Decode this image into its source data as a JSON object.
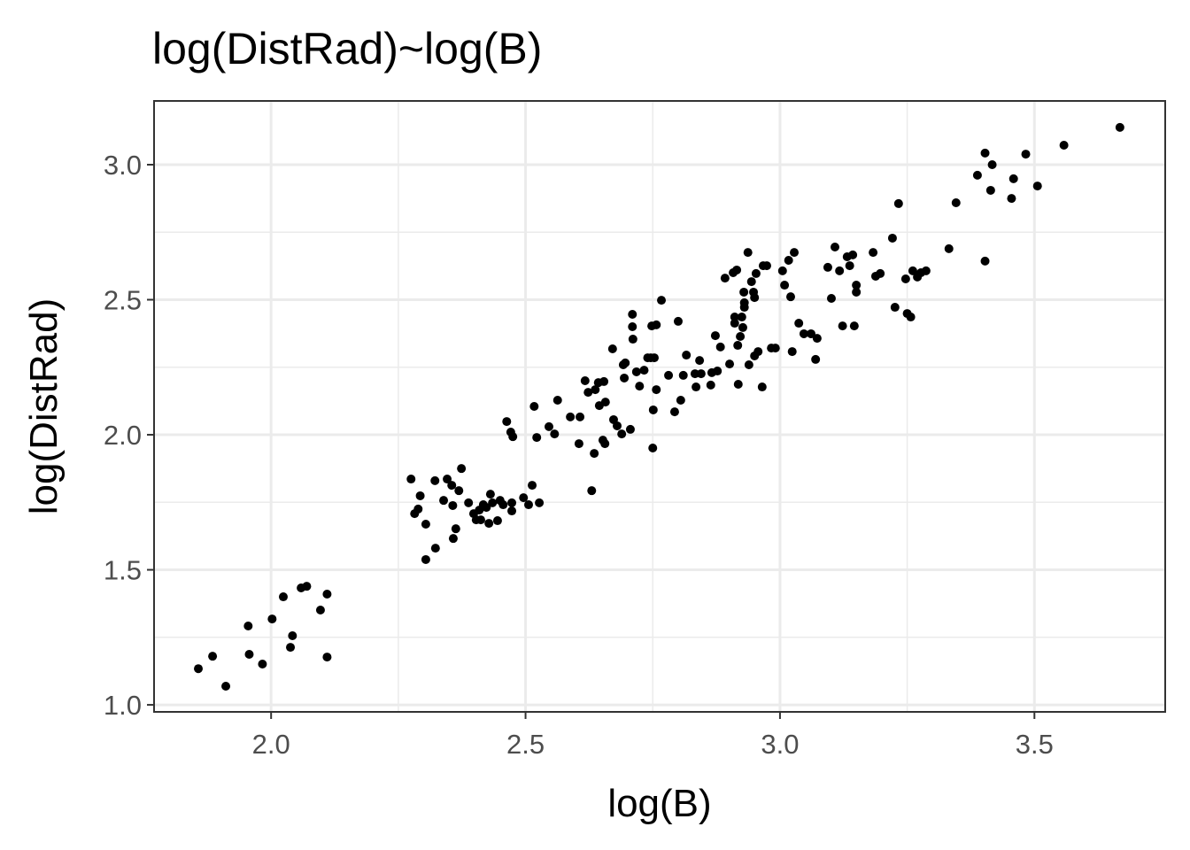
{
  "chart_data": {
    "type": "scatter",
    "title": "log(DistRad)~log(B)",
    "x_label": "log(B)",
    "y_label": "log(DistRad)",
    "xlim": [
      1.77,
      3.757
    ],
    "ylim": [
      0.974,
      3.236
    ],
    "xticks": [
      {
        "value": 2,
        "label": "2.0"
      },
      2.5,
      {
        "value": 3,
        "label": "3.0"
      },
      3.5
    ],
    "yticks": [
      {
        "value": 1,
        "label": "1.0"
      },
      1.5,
      {
        "value": 2,
        "label": "2.0"
      },
      2.5,
      {
        "value": 3,
        "label": "3.0"
      }
    ],
    "x_minor_gridlines": [
      2.25,
      2.75,
      3.25
    ],
    "y_minor_gridlines": [
      1.25,
      1.75,
      2.25,
      2.75
    ],
    "grid": true,
    "color": "#000000",
    "x": [
      1.857,
      1.885,
      1.911,
      1.955,
      1.957,
      1.983,
      2.002,
      2.024,
      2.042,
      2.038,
      2.059,
      2.07,
      2.097,
      2.11,
      2.11,
      2.275,
      2.282,
      2.293,
      2.289,
      2.304,
      2.304,
      2.322,
      2.323,
      2.339,
      2.346,
      2.355,
      2.358,
      2.363,
      2.357,
      2.369,
      2.374,
      2.388,
      2.398,
      2.403,
      2.409,
      2.412,
      2.417,
      2.423,
      2.428,
      2.431,
      2.435,
      2.445,
      2.45,
      2.456,
      2.463,
      2.471,
      2.475,
      2.473,
      2.473,
      2.496,
      2.506,
      2.513,
      2.517,
      2.522,
      2.527,
      2.546,
      2.557,
      2.563,
      2.588,
      2.607,
      2.605,
      2.617,
      2.623,
      2.63,
      2.635,
      2.637,
      2.643,
      2.645,
      2.654,
      2.656,
      2.657,
      2.652,
      2.671,
      2.673,
      2.68,
      2.689,
      2.692,
      2.694,
      2.696,
      2.706,
      2.71,
      2.71,
      2.711,
      2.718,
      2.724,
      2.733,
      2.74,
      2.746,
      2.748,
      2.75,
      2.751,
      2.753,
      2.757,
      2.757,
      2.767,
      2.781,
      2.793,
      2.8,
      2.805,
      2.81,
      2.816,
      2.833,
      2.835,
      2.842,
      2.845,
      2.864,
      2.866,
      2.873,
      2.877,
      2.883,
      2.892,
      2.901,
      2.908,
      2.911,
      2.911,
      2.915,
      2.917,
      2.918,
      2.922,
      2.925,
      2.929,
      2.93,
      2.93,
      2.927,
      2.937,
      2.939,
      2.944,
      2.948,
      2.95,
      2.95,
      2.953,
      2.957,
      2.965,
      2.967,
      2.974,
      2.983,
      2.991,
      3.005,
      3.009,
      3.017,
      3.021,
      3.024,
      3.028,
      3.037,
      3.047,
      3.061,
      3.07,
      3.073,
      3.094,
      3.101,
      3.108,
      3.117,
      3.123,
      3.132,
      3.137,
      3.143,
      3.146,
      3.15,
      3.15,
      3.183,
      3.188,
      3.197,
      3.221,
      3.226,
      3.233,
      3.247,
      3.25,
      3.257,
      3.261,
      3.27,
      3.277,
      3.287,
      3.332,
      3.346,
      3.388,
      3.403,
      3.403,
      3.414,
      3.417,
      3.455,
      3.459,
      3.483,
      3.506,
      3.558,
      3.668
    ],
    "values": [
      1.134,
      1.18,
      1.069,
      1.292,
      1.187,
      1.151,
      1.318,
      1.4,
      1.256,
      1.213,
      1.433,
      1.439,
      1.351,
      1.41,
      1.177,
      1.836,
      1.708,
      1.774,
      1.725,
      1.669,
      1.538,
      1.83,
      1.58,
      1.757,
      1.836,
      1.813,
      1.616,
      1.652,
      1.738,
      1.793,
      1.875,
      1.748,
      1.708,
      1.685,
      1.721,
      1.685,
      1.741,
      1.731,
      1.672,
      1.78,
      1.748,
      1.682,
      1.757,
      1.741,
      2.049,
      2.01,
      1.993,
      1.718,
      1.748,
      1.767,
      1.741,
      1.813,
      2.105,
      1.99,
      1.748,
      2.03,
      2.003,
      2.128,
      2.066,
      2.066,
      1.967,
      2.2,
      2.157,
      1.793,
      1.931,
      2.167,
      2.193,
      2.108,
      2.197,
      1.967,
      2.121,
      1.98,
      2.318,
      2.056,
      2.033,
      2.003,
      2.259,
      2.21,
      2.266,
      2.02,
      2.446,
      2.4,
      2.354,
      2.233,
      2.18,
      2.239,
      2.285,
      2.285,
      2.403,
      1.951,
      2.092,
      2.285,
      2.167,
      2.407,
      2.498,
      2.22,
      2.085,
      2.42,
      2.128,
      2.22,
      2.295,
      2.226,
      2.177,
      2.275,
      2.226,
      2.184,
      2.23,
      2.367,
      2.236,
      2.325,
      2.58,
      2.262,
      2.6,
      2.436,
      2.413,
      2.61,
      2.331,
      2.187,
      2.364,
      2.436,
      2.528,
      2.472,
      2.489,
      2.397,
      2.675,
      2.259,
      2.567,
      2.528,
      2.508,
      2.292,
      2.597,
      2.308,
      2.177,
      2.626,
      2.626,
      2.321,
      2.321,
      2.607,
      2.554,
      2.646,
      2.511,
      2.308,
      2.675,
      2.413,
      2.374,
      2.374,
      2.279,
      2.357,
      2.62,
      2.505,
      2.695,
      2.607,
      2.403,
      2.659,
      2.626,
      2.666,
      2.403,
      2.528,
      2.554,
      2.675,
      2.587,
      2.597,
      2.728,
      2.472,
      2.856,
      2.577,
      2.449,
      2.436,
      2.607,
      2.584,
      2.6,
      2.607,
      2.689,
      2.859,
      2.961,
      2.643,
      3.043,
      2.905,
      3.0,
      2.875,
      2.948,
      3.039,
      2.921,
      3.072,
      3.138
    ]
  }
}
